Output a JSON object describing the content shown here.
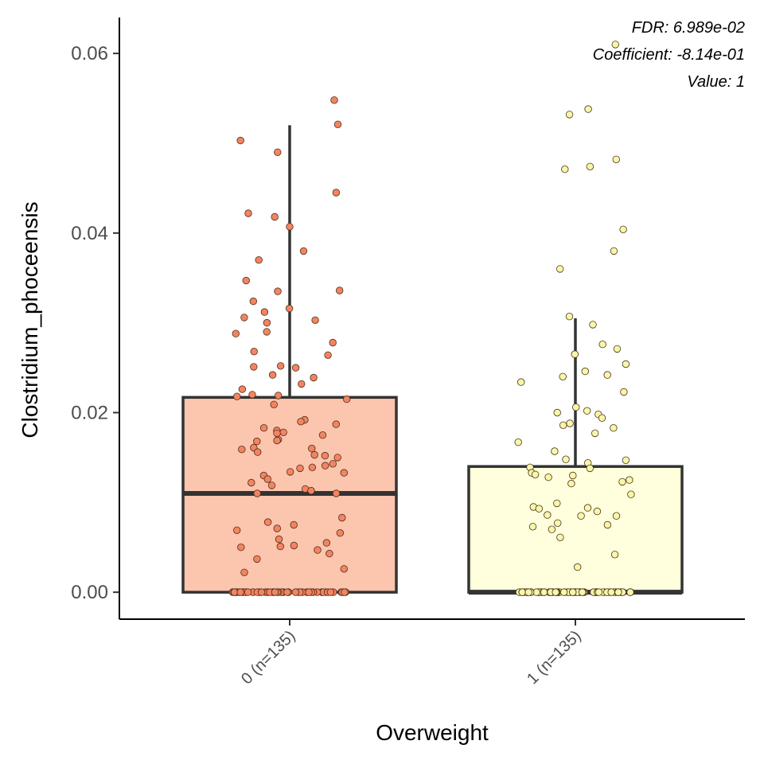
{
  "chart_data": {
    "type": "boxplot",
    "xlabel": "Overweight",
    "ylabel": "Clostridium_phoceensis",
    "ylim": [
      -0.003,
      0.064
    ],
    "yticks": [
      {
        "value": 0.0,
        "label": "0.00"
      },
      {
        "value": 0.02,
        "label": "0.02"
      },
      {
        "value": 0.04,
        "label": "0.04"
      },
      {
        "value": 0.06,
        "label": "0.06"
      }
    ],
    "annotations": [
      "FDR: 6.989e-02",
      "Coefficient: -8.14e-01",
      "Value: 1"
    ],
    "grid": false,
    "legend": "none",
    "groups": [
      {
        "label": "0 (n=135)",
        "fill": "#fcc5ae",
        "point_color": "#f4845f",
        "q1": 0.0,
        "median": 0.011,
        "q3": 0.0217,
        "whisker_low": 0.0,
        "whisker_high": 0.052,
        "points": [
          0.0548,
          0.0521,
          0.0503,
          0.049,
          0.0445,
          0.0422,
          0.0418,
          0.0407,
          0.038,
          0.037,
          0.0347,
          0.0336,
          0.0335,
          0.0324,
          0.0316,
          0.0312,
          0.0306,
          0.0303,
          0.03,
          0.029,
          0.0288,
          0.0278,
          0.0268,
          0.0264,
          0.0252,
          0.0251,
          0.025,
          0.0242,
          0.0239,
          0.0232,
          0.0226,
          0.022,
          0.0219,
          0.0218,
          0.0215,
          0.0209,
          0.0192,
          0.019,
          0.0187,
          0.0183,
          0.018,
          0.0178,
          0.0177,
          0.0175,
          0.017,
          0.0169,
          0.0168,
          0.0161,
          0.016,
          0.0159,
          0.0156,
          0.0153,
          0.0152,
          0.015,
          0.0143,
          0.0141,
          0.0139,
          0.0138,
          0.0134,
          0.0133,
          0.013,
          0.0126,
          0.0122,
          0.0119,
          0.0115,
          0.0113,
          0.011,
          0.011,
          0.0083,
          0.0078,
          0.0075,
          0.0071,
          0.0069,
          0.0066,
          0.0059,
          0.0055,
          0.0052,
          0.0051,
          0.005,
          0.0047,
          0.0043,
          0.0037,
          0.0026,
          0.0022,
          0,
          0,
          0,
          0,
          0,
          0,
          0,
          0,
          0,
          0,
          0,
          0,
          0,
          0,
          0,
          0,
          0,
          0,
          0,
          0,
          0,
          0,
          0,
          0,
          0,
          0,
          0,
          0,
          0,
          0,
          0,
          0,
          0,
          0,
          0,
          0,
          0,
          0,
          0,
          0,
          0,
          0,
          0,
          0,
          0,
          0,
          0,
          0,
          0,
          0,
          0,
          0,
          0,
          0,
          0,
          0,
          0
        ]
      },
      {
        "label": "1 (n=135)",
        "fill": "#ffffdd",
        "point_color": "#f7f7a8",
        "q1": 0.0,
        "median": 0.0,
        "q3": 0.014,
        "whisker_low": 0.0,
        "whisker_high": 0.0305,
        "points": [
          0.061,
          0.0538,
          0.0532,
          0.0482,
          0.0474,
          0.0471,
          0.0404,
          0.038,
          0.036,
          0.0307,
          0.0298,
          0.0276,
          0.0271,
          0.0265,
          0.0254,
          0.0246,
          0.0242,
          0.024,
          0.0234,
          0.0223,
          0.0206,
          0.0202,
          0.02,
          0.0198,
          0.0194,
          0.0188,
          0.0186,
          0.0183,
          0.0177,
          0.0167,
          0.0157,
          0.0148,
          0.0147,
          0.0144,
          0.0139,
          0.0138,
          0.0133,
          0.0131,
          0.013,
          0.0128,
          0.0125,
          0.0123,
          0.0121,
          0.0109,
          0.0099,
          0.0095,
          0.0094,
          0.0093,
          0.009,
          0.0086,
          0.0085,
          0.0085,
          0.0077,
          0.0075,
          0.0073,
          0.007,
          0.0061,
          0.0042,
          0.0028,
          0,
          0,
          0,
          0,
          0,
          0,
          0,
          0,
          0,
          0,
          0,
          0,
          0,
          0,
          0,
          0,
          0,
          0,
          0,
          0,
          0,
          0,
          0,
          0,
          0,
          0,
          0,
          0,
          0,
          0,
          0,
          0,
          0,
          0,
          0,
          0,
          0,
          0,
          0,
          0,
          0,
          0,
          0,
          0,
          0,
          0,
          0,
          0,
          0,
          0,
          0,
          0,
          0,
          0,
          0,
          0,
          0,
          0,
          0,
          0,
          0,
          0,
          0,
          0,
          0,
          0,
          0,
          0,
          0,
          0,
          0,
          0,
          0,
          0,
          0,
          0
        ]
      }
    ]
  }
}
